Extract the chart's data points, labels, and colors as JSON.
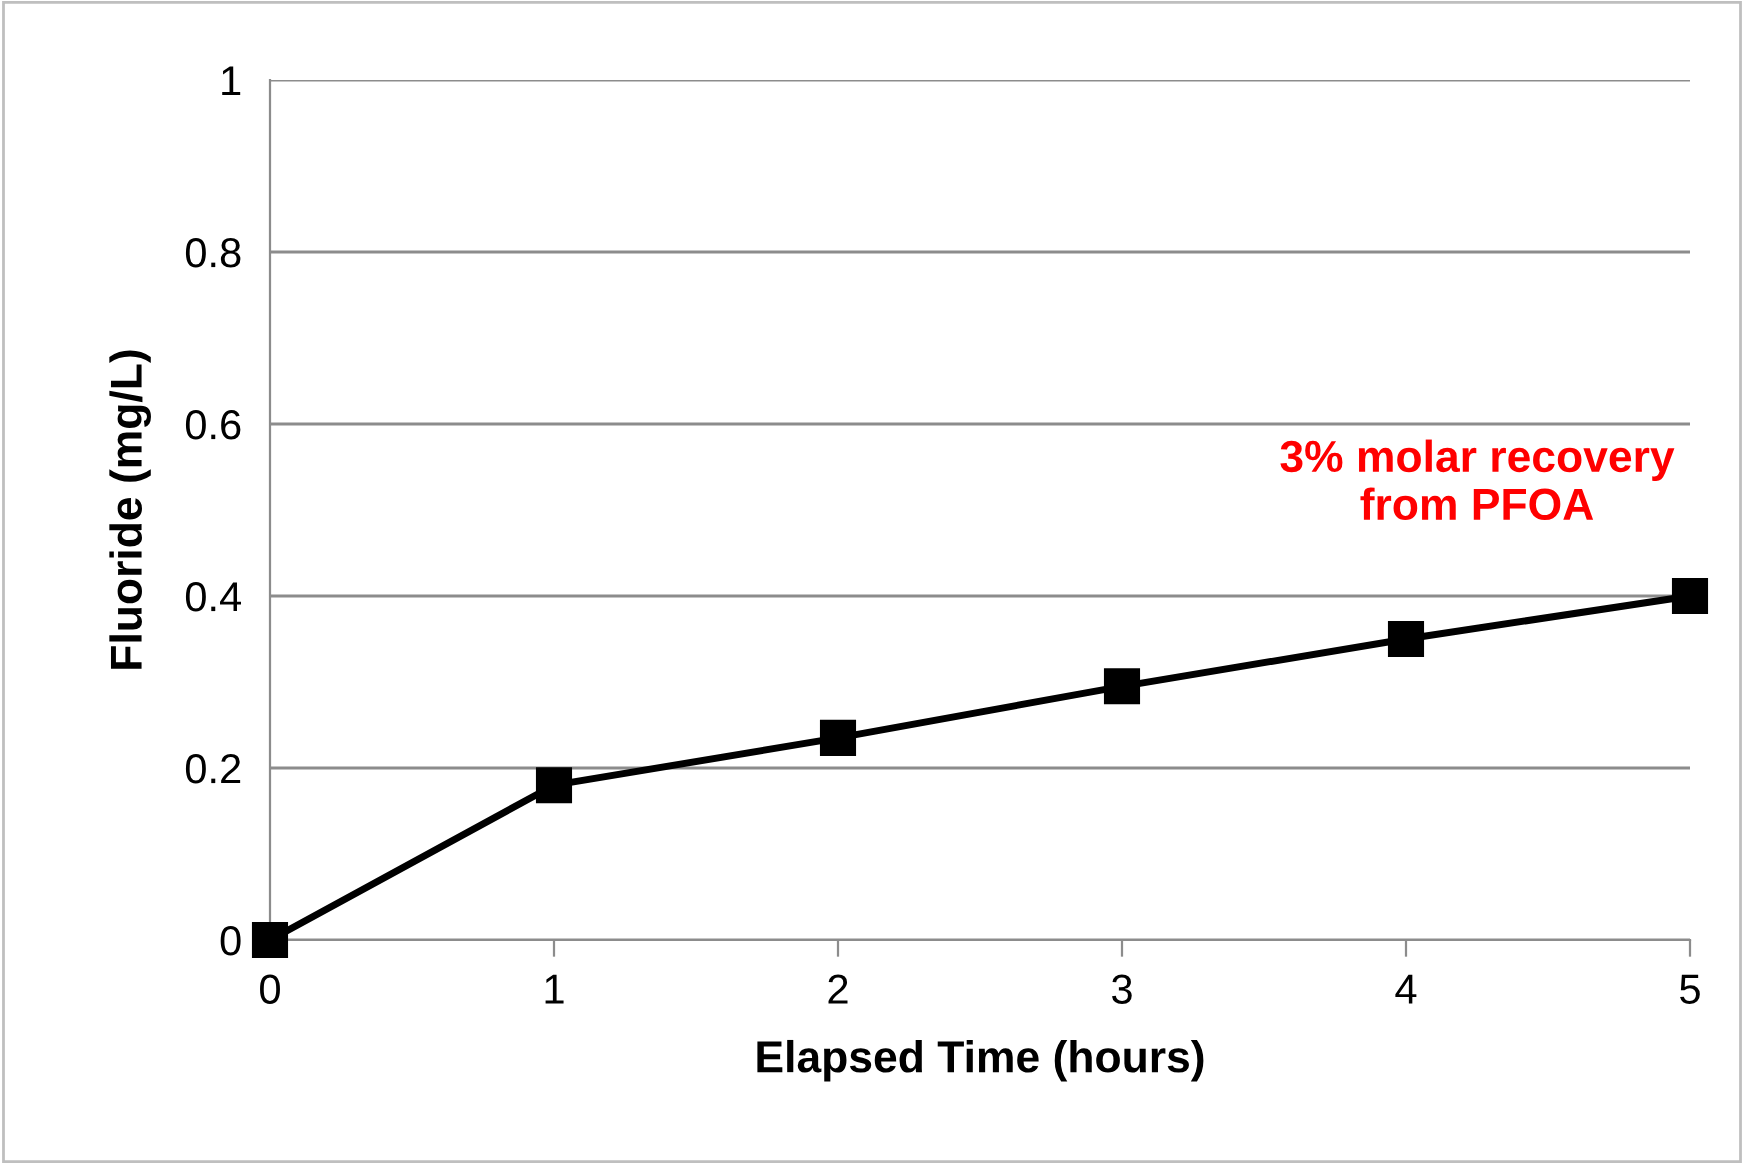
{
  "chart_data": {
    "type": "line",
    "xlabel": "Elapsed Time (hours)",
    "ylabel": "Fluoride (mg/L)",
    "x": [
      0,
      1,
      2,
      3,
      4,
      5
    ],
    "series": [
      {
        "color": "#000000",
        "values": [
          0,
          0.18,
          0.235,
          0.295,
          0.35,
          0.4
        ]
      }
    ],
    "xlim": [
      0,
      5
    ],
    "xticks": [
      0,
      1,
      2,
      3,
      4,
      5
    ],
    "ylim": [
      0,
      1
    ],
    "yticks": [
      0,
      0.2,
      0.4,
      0.6,
      0.8,
      1
    ],
    "grid": "y",
    "marker": "square",
    "line_style": "solid",
    "annotations": [
      "3% molar recovery\nfrom PFOA"
    ]
  }
}
